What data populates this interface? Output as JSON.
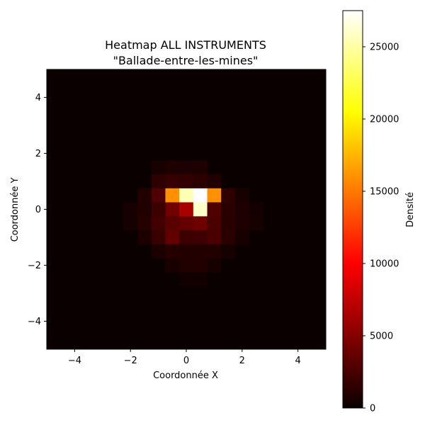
{
  "chart_data": {
    "type": "heatmap",
    "title_line1": "Heatmap ALL INSTRUMENTS",
    "title_line2": "\"Ballade-entre-les-mines\"",
    "xlabel": "Coordonnée X",
    "ylabel": "Coordonnée Y",
    "xlim": [
      -5,
      5
    ],
    "ylim": [
      -5,
      5
    ],
    "grid": false,
    "xticks": [
      -4,
      -2,
      0,
      2,
      4
    ],
    "yticks": [
      -4,
      -2,
      0,
      2,
      4
    ],
    "xtick_labels": [
      "−4",
      "−2",
      "0",
      "2",
      "4"
    ],
    "ytick_labels": [
      "−4",
      "−2",
      "0",
      "2",
      "4"
    ],
    "bins": 20,
    "colormap": "hot",
    "cells_note_origin": "lower",
    "cells": [
      {
        "x": -1.0,
        "y": 1.5,
        "value": 600
      },
      {
        "x": -0.5,
        "y": 1.5,
        "value": 800
      },
      {
        "x": 0.0,
        "y": 1.5,
        "value": 700
      },
      {
        "x": 0.5,
        "y": 1.5,
        "value": 800
      },
      {
        "x": -1.0,
        "y": 1.0,
        "value": 1500
      },
      {
        "x": -0.5,
        "y": 1.0,
        "value": 1800
      },
      {
        "x": 0.0,
        "y": 1.0,
        "value": 1600
      },
      {
        "x": 0.5,
        "y": 1.0,
        "value": 1400
      },
      {
        "x": 1.0,
        "y": 1.0,
        "value": 900
      },
      {
        "x": -1.5,
        "y": 0.5,
        "value": 900
      },
      {
        "x": -1.0,
        "y": 0.5,
        "value": 2800
      },
      {
        "x": -0.5,
        "y": 0.5,
        "value": 16000
      },
      {
        "x": 0.0,
        "y": 0.5,
        "value": 25500
      },
      {
        "x": 0.5,
        "y": 0.5,
        "value": 27500
      },
      {
        "x": 1.0,
        "y": 0.5,
        "value": 16000
      },
      {
        "x": 1.5,
        "y": 0.5,
        "value": 1500
      },
      {
        "x": 2.0,
        "y": 0.5,
        "value": 600
      },
      {
        "x": -2.0,
        "y": 0.0,
        "value": 500
      },
      {
        "x": -1.5,
        "y": 0.0,
        "value": 1000
      },
      {
        "x": -1.0,
        "y": 0.0,
        "value": 2000
      },
      {
        "x": -0.5,
        "y": 0.0,
        "value": 4200
      },
      {
        "x": 0.0,
        "y": 0.0,
        "value": 6500
      },
      {
        "x": 0.5,
        "y": 0.0,
        "value": 26000
      },
      {
        "x": 1.0,
        "y": 0.0,
        "value": 2800
      },
      {
        "x": 1.5,
        "y": 0.0,
        "value": 1300
      },
      {
        "x": 2.0,
        "y": 0.0,
        "value": 800
      },
      {
        "x": 2.5,
        "y": 0.0,
        "value": 400
      },
      {
        "x": -2.0,
        "y": -0.5,
        "value": 500
      },
      {
        "x": -1.5,
        "y": -0.5,
        "value": 1100
      },
      {
        "x": -1.0,
        "y": -0.5,
        "value": 2300
      },
      {
        "x": -0.5,
        "y": -0.5,
        "value": 3200
      },
      {
        "x": 0.0,
        "y": -0.5,
        "value": 3700
      },
      {
        "x": 0.5,
        "y": -0.5,
        "value": 4100
      },
      {
        "x": 1.0,
        "y": -0.5,
        "value": 2600
      },
      {
        "x": 1.5,
        "y": -0.5,
        "value": 1200
      },
      {
        "x": 2.0,
        "y": -0.5,
        "value": 800
      },
      {
        "x": 2.5,
        "y": -0.5,
        "value": 500
      },
      {
        "x": -1.5,
        "y": -1.0,
        "value": 700
      },
      {
        "x": -1.0,
        "y": -1.0,
        "value": 1900
      },
      {
        "x": -0.5,
        "y": -1.0,
        "value": 3600
      },
      {
        "x": 0.0,
        "y": -1.0,
        "value": 2000
      },
      {
        "x": 0.5,
        "y": -1.0,
        "value": 2100
      },
      {
        "x": 1.0,
        "y": -1.0,
        "value": 2600
      },
      {
        "x": 1.5,
        "y": -1.0,
        "value": 1300
      },
      {
        "x": 2.0,
        "y": -1.0,
        "value": 500
      },
      {
        "x": -1.0,
        "y": -1.5,
        "value": 700
      },
      {
        "x": -0.5,
        "y": -1.5,
        "value": 1100
      },
      {
        "x": 0.0,
        "y": -1.5,
        "value": 1000
      },
      {
        "x": 0.5,
        "y": -1.5,
        "value": 1000
      },
      {
        "x": 1.0,
        "y": -1.5,
        "value": 900
      },
      {
        "x": 1.5,
        "y": -1.5,
        "value": 500
      },
      {
        "x": -0.5,
        "y": -2.0,
        "value": 600
      },
      {
        "x": 0.0,
        "y": -2.0,
        "value": 900
      },
      {
        "x": 0.5,
        "y": -2.0,
        "value": 1000
      },
      {
        "x": 1.0,
        "y": -2.0,
        "value": 500
      },
      {
        "x": 0.0,
        "y": -2.5,
        "value": 300
      },
      {
        "x": 0.5,
        "y": -2.5,
        "value": 300
      }
    ],
    "colorbar": {
      "label": "Densité",
      "min": 0,
      "max": 27500,
      "ticks": [
        0,
        5000,
        10000,
        15000,
        20000,
        25000
      ],
      "tick_labels": [
        "0",
        "5000",
        "10000",
        "15000",
        "20000",
        "25000"
      ]
    }
  }
}
